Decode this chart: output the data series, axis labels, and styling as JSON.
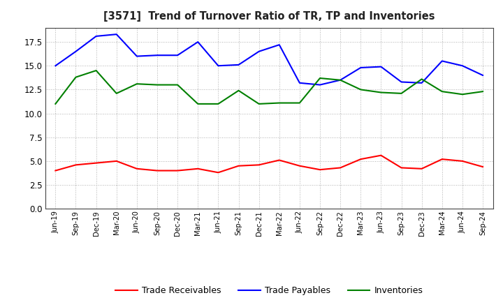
{
  "title": "[3571]  Trend of Turnover Ratio of TR, TP and Inventories",
  "x_labels": [
    "Jun-19",
    "Sep-19",
    "Dec-19",
    "Mar-20",
    "Jun-20",
    "Sep-20",
    "Dec-20",
    "Mar-21",
    "Jun-21",
    "Sep-21",
    "Dec-21",
    "Mar-22",
    "Jun-22",
    "Sep-22",
    "Dec-22",
    "Mar-23",
    "Jun-23",
    "Sep-23",
    "Dec-23",
    "Mar-24",
    "Jun-24",
    "Sep-24"
  ],
  "trade_receivables": [
    4.0,
    4.6,
    4.8,
    5.0,
    4.2,
    4.0,
    4.0,
    4.2,
    3.8,
    4.5,
    4.6,
    5.1,
    4.5,
    4.1,
    4.3,
    5.2,
    5.6,
    4.3,
    4.2,
    5.2,
    5.0,
    4.4
  ],
  "trade_payables": [
    15.0,
    16.5,
    18.1,
    18.3,
    16.0,
    16.1,
    16.1,
    17.5,
    15.0,
    15.1,
    16.5,
    17.2,
    13.2,
    13.0,
    13.5,
    14.8,
    14.9,
    13.3,
    13.2,
    15.5,
    15.0,
    14.0
  ],
  "inventories": [
    11.0,
    13.8,
    14.5,
    12.1,
    13.1,
    13.0,
    13.0,
    11.0,
    11.0,
    12.4,
    11.0,
    11.1,
    11.1,
    13.7,
    13.5,
    12.5,
    12.2,
    12.1,
    13.6,
    12.3,
    12.0,
    12.3
  ],
  "ylim": [
    0.0,
    19.0
  ],
  "yticks": [
    0.0,
    2.5,
    5.0,
    7.5,
    10.0,
    12.5,
    15.0,
    17.5
  ],
  "tr_color": "#ff0000",
  "tp_color": "#0000ff",
  "inv_color": "#008000",
  "legend_labels": [
    "Trade Receivables",
    "Trade Payables",
    "Inventories"
  ],
  "background_color": "#ffffff",
  "grid_color": "#b0b0b0"
}
